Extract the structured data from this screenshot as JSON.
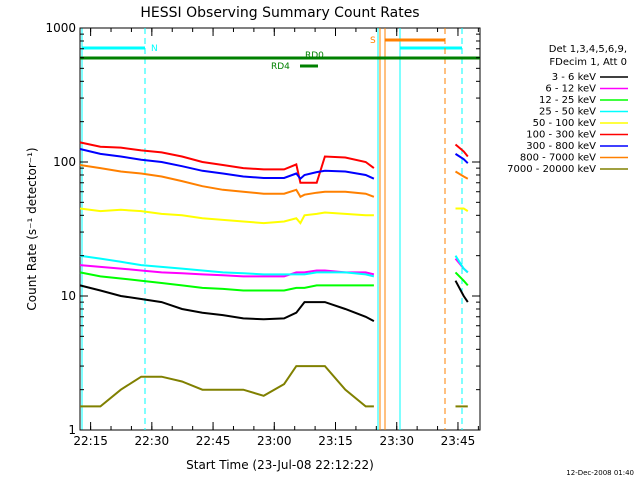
{
  "chart_data": {
    "type": "line",
    "title": "HESSI Observing Summary Count Rates",
    "xlabel": "Start Time (23-Jul-08 22:12:22)",
    "ylabel": "Count Rate (s⁻¹ detector⁻¹)",
    "xlim_minutes": [
      0,
      98
    ],
    "ylim": [
      1,
      1000
    ],
    "yscale": "log",
    "x_ticks": [
      {
        "label": "22:15",
        "minutes": 2.6
      },
      {
        "label": "22:30",
        "minutes": 17.6
      },
      {
        "label": "22:45",
        "minutes": 32.6
      },
      {
        "label": "23:00",
        "minutes": 47.6
      },
      {
        "label": "23:15",
        "minutes": 62.6
      },
      {
        "label": "23:30",
        "minutes": 77.6
      },
      {
        "label": "23:45",
        "minutes": 92.6
      }
    ],
    "y_ticks": [
      {
        "label": "1",
        "value": 1
      },
      {
        "label": "10",
        "value": 10
      },
      {
        "label": "100",
        "value": 100
      },
      {
        "label": "1000",
        "value": 1000
      }
    ],
    "legend_header": [
      "Det 1,3,4,5,6,9,",
      "FDecim 1, Att 0"
    ],
    "series": [
      {
        "name": "3 - 6 keV",
        "color": "#000000",
        "x": [
          0,
          5,
          10,
          15,
          20,
          25,
          30,
          35,
          40,
          45,
          50,
          53,
          55,
          58,
          60,
          65,
          70,
          72,
          92,
          94,
          95
        ],
        "values": [
          12,
          11,
          10,
          9.5,
          9,
          8,
          7.5,
          7.2,
          6.8,
          6.7,
          6.8,
          7.5,
          9,
          9,
          9,
          8,
          7,
          6.5,
          13,
          10,
          9
        ]
      },
      {
        "name": "6 - 12 keV",
        "color": "#ff00ff",
        "x": [
          0,
          5,
          10,
          15,
          20,
          25,
          30,
          35,
          40,
          45,
          50,
          53,
          55,
          58,
          60,
          65,
          70,
          72,
          92,
          94,
          95
        ],
        "values": [
          17,
          16.5,
          16,
          15.5,
          15,
          14.8,
          14.5,
          14.3,
          14,
          14,
          14,
          15,
          15,
          15.5,
          15.5,
          15,
          15,
          14.5,
          19,
          16,
          15
        ]
      },
      {
        "name": "12 - 25 keV",
        "color": "#00ff00",
        "x": [
          0,
          5,
          10,
          15,
          20,
          25,
          30,
          35,
          40,
          45,
          50,
          53,
          55,
          58,
          60,
          65,
          70,
          72,
          92,
          94,
          95
        ],
        "values": [
          15,
          14,
          13.5,
          13,
          12.5,
          12,
          11.5,
          11.3,
          11,
          11,
          11,
          11.5,
          11.5,
          12,
          12,
          12,
          12,
          12,
          15,
          13,
          12
        ]
      },
      {
        "name": "25 - 50 keV",
        "color": "#00ffff",
        "x": [
          0,
          5,
          10,
          15,
          20,
          25,
          30,
          35,
          40,
          45,
          50,
          53,
          55,
          58,
          60,
          65,
          70,
          72,
          92,
          94,
          95
        ],
        "values": [
          20,
          19,
          18,
          17,
          16.5,
          16,
          15.5,
          15,
          14.8,
          14.5,
          14.5,
          14.5,
          14.5,
          15,
          15,
          15,
          14.5,
          14,
          20,
          16,
          15
        ]
      },
      {
        "name": "50 - 100 keV",
        "color": "#ffff00",
        "x": [
          0,
          5,
          10,
          15,
          20,
          25,
          30,
          35,
          40,
          45,
          50,
          53,
          54,
          55,
          58,
          60,
          65,
          70,
          72,
          92,
          94,
          95
        ],
        "values": [
          45,
          43,
          44,
          43,
          41,
          40,
          38,
          37,
          36,
          35,
          36,
          38,
          35,
          40,
          41,
          42,
          41,
          40,
          40,
          45,
          45,
          43
        ]
      },
      {
        "name": "100 - 300 keV",
        "color": "#ff0000",
        "x": [
          0,
          5,
          10,
          15,
          20,
          25,
          30,
          35,
          40,
          45,
          50,
          53,
          54,
          55,
          58,
          60,
          65,
          70,
          72,
          92,
          94,
          95
        ],
        "values": [
          140,
          130,
          128,
          122,
          118,
          110,
          100,
          95,
          90,
          88,
          88,
          96,
          70,
          70,
          70,
          110,
          108,
          100,
          90,
          135,
          120,
          110
        ]
      },
      {
        "name": "300 - 800 keV",
        "color": "#0000ff",
        "x": [
          0,
          5,
          10,
          15,
          20,
          25,
          30,
          35,
          40,
          45,
          50,
          53,
          54,
          55,
          58,
          60,
          65,
          70,
          72,
          92,
          94,
          95
        ],
        "values": [
          125,
          115,
          110,
          104,
          100,
          93,
          86,
          82,
          78,
          76,
          76,
          82,
          75,
          80,
          84,
          86,
          85,
          80,
          75,
          115,
          105,
          98
        ]
      },
      {
        "name": "800 - 7000 keV",
        "color": "#ff8000",
        "x": [
          0,
          5,
          10,
          15,
          20,
          25,
          30,
          35,
          40,
          45,
          50,
          53,
          54,
          55,
          58,
          60,
          65,
          70,
          72,
          92,
          94,
          95
        ],
        "values": [
          95,
          90,
          85,
          82,
          78,
          72,
          66,
          62,
          60,
          58,
          58,
          62,
          55,
          57,
          59,
          60,
          60,
          58,
          55,
          85,
          78,
          75
        ]
      },
      {
        "name": "7000 - 20000 keV",
        "color": "#808000",
        "x": [
          0,
          5,
          10,
          15,
          20,
          25,
          30,
          35,
          40,
          45,
          50,
          53,
          55,
          58,
          60,
          65,
          70,
          72,
          92,
          94,
          95
        ],
        "values": [
          1.5,
          1.5,
          2,
          2.5,
          2.5,
          2.3,
          2,
          2,
          2,
          1.8,
          2.2,
          3,
          3,
          3,
          3,
          2,
          1.5,
          1.5,
          1.5,
          1.5,
          1.5
        ]
      }
    ],
    "annotations": [
      {
        "label": "N",
        "color": "#00ffff"
      },
      {
        "label": "S",
        "color": "#ff8000"
      },
      {
        "label": "RD0",
        "color": "#008000"
      },
      {
        "label": "RD4",
        "color": "#008000"
      }
    ]
  },
  "footer_date": "12-Dec-2008 01:40"
}
